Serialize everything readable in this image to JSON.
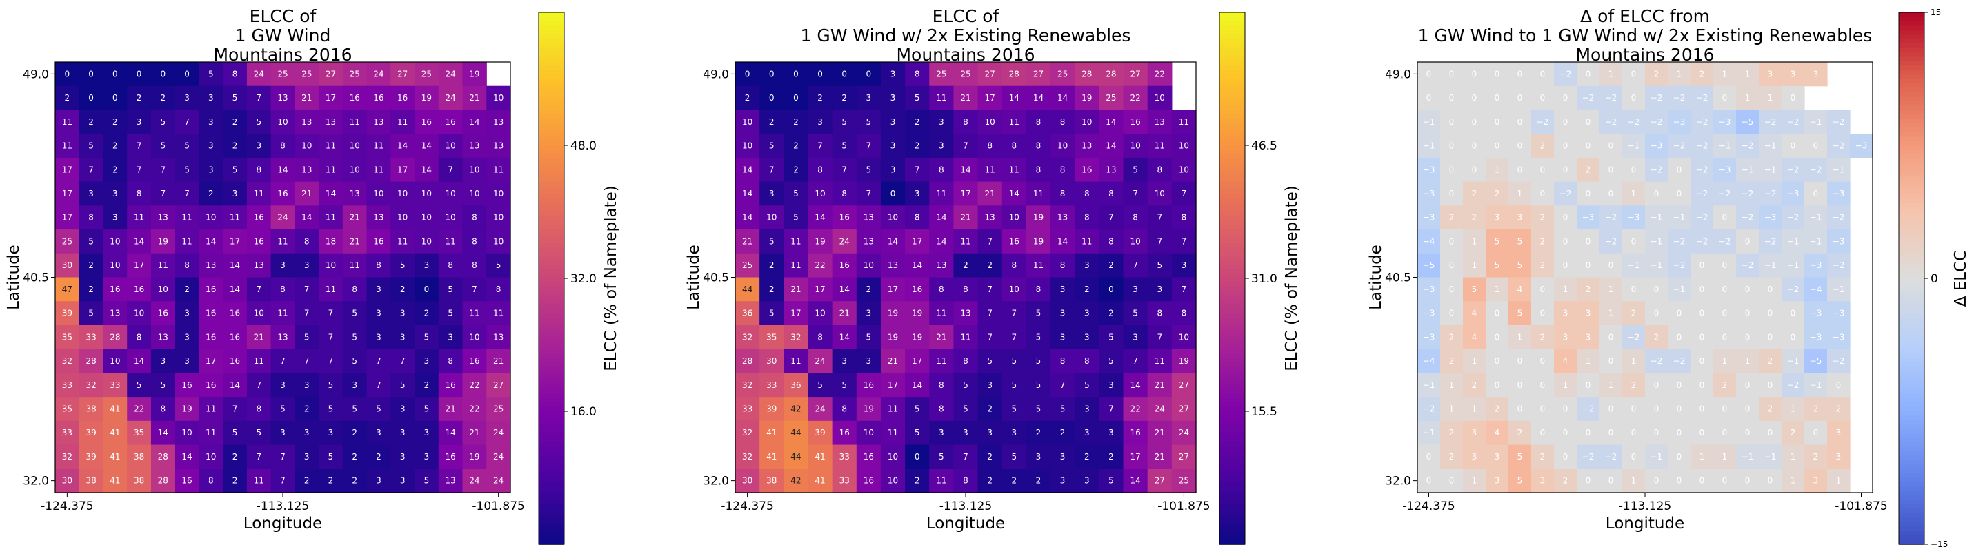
{
  "chart_data": [
    {
      "type": "heatmap",
      "title": [
        "ELCC of",
        "1 GW Wind",
        "Mountains 2016"
      ],
      "xlabel": "Longitude",
      "ylabel": "Latitude",
      "xticks": [
        "-124.375",
        "-113.125",
        "-101.875"
      ],
      "yticks": [
        "49.0",
        "40.5",
        "32.0"
      ],
      "colorbar_label": "ELCC (% of Nameplate)",
      "colorbar_ticks": [
        "16.0",
        "32.0",
        "48.0"
      ],
      "colorbar_tick_values": [
        16,
        32,
        48
      ],
      "colormap": "plasma",
      "vmin": 0,
      "vmax": 64,
      "values": [
        [
          0,
          0,
          0,
          0,
          0,
          0,
          5,
          8,
          24,
          25,
          25,
          27,
          25,
          24,
          27,
          25,
          24,
          19
        ],
        [
          2,
          0,
          0,
          2,
          2,
          3,
          3,
          5,
          7,
          13,
          21,
          17,
          16,
          16,
          16,
          19,
          24,
          21,
          10
        ],
        [
          11,
          2,
          2,
          3,
          5,
          7,
          3,
          2,
          5,
          10,
          13,
          13,
          11,
          13,
          11,
          16,
          16,
          14,
          13
        ],
        [
          11,
          5,
          2,
          7,
          5,
          5,
          3,
          2,
          3,
          8,
          10,
          11,
          10,
          11,
          14,
          14,
          10,
          13,
          13
        ],
        [
          17,
          7,
          2,
          7,
          7,
          5,
          3,
          5,
          8,
          14,
          13,
          11,
          10,
          11,
          17,
          14,
          7,
          10,
          11
        ],
        [
          17,
          3,
          3,
          8,
          7,
          7,
          2,
          3,
          11,
          16,
          21,
          14,
          13,
          10,
          10,
          10,
          10,
          10,
          10
        ],
        [
          17,
          8,
          3,
          11,
          13,
          11,
          10,
          11,
          16,
          24,
          14,
          11,
          21,
          13,
          10,
          10,
          10,
          8,
          10
        ],
        [
          25,
          5,
          10,
          14,
          19,
          11,
          14,
          17,
          16,
          11,
          8,
          18,
          21,
          16,
          11,
          10,
          11,
          8,
          10
        ],
        [
          30,
          2,
          10,
          17,
          11,
          8,
          13,
          14,
          13,
          3,
          3,
          10,
          11,
          8,
          5,
          3,
          8,
          8,
          5
        ],
        [
          47,
          2,
          16,
          16,
          10,
          2,
          16,
          14,
          7,
          8,
          7,
          11,
          8,
          3,
          2,
          0,
          5,
          7,
          8
        ],
        [
          39,
          5,
          13,
          10,
          16,
          3,
          16,
          16,
          10,
          11,
          7,
          7,
          5,
          3,
          3,
          2,
          5,
          11,
          11
        ],
        [
          35,
          33,
          28,
          8,
          13,
          3,
          16,
          16,
          21,
          13,
          5,
          7,
          5,
          3,
          3,
          5,
          3,
          10,
          13
        ],
        [
          32,
          28,
          10,
          14,
          3,
          3,
          17,
          16,
          11,
          7,
          7,
          7,
          5,
          7,
          7,
          3,
          8,
          16,
          21
        ],
        [
          33,
          32,
          33,
          5,
          5,
          16,
          16,
          14,
          7,
          3,
          3,
          5,
          3,
          7,
          5,
          2,
          16,
          22,
          27
        ],
        [
          35,
          38,
          41,
          22,
          8,
          19,
          11,
          7,
          8,
          5,
          2,
          5,
          5,
          5,
          3,
          5,
          21,
          22,
          25
        ],
        [
          33,
          39,
          41,
          35,
          14,
          10,
          11,
          5,
          5,
          3,
          3,
          3,
          2,
          3,
          3,
          3,
          14,
          21,
          24
        ],
        [
          32,
          39,
          41,
          38,
          28,
          14,
          10,
          2,
          7,
          7,
          3,
          5,
          2,
          2,
          3,
          3,
          16,
          19,
          24
        ],
        [
          30,
          38,
          41,
          38,
          28,
          16,
          8,
          2,
          11,
          7,
          2,
          2,
          2,
          3,
          3,
          5,
          13,
          24,
          24
        ]
      ]
    },
    {
      "type": "heatmap",
      "title": [
        "ELCC of",
        "1 GW Wind w/ 2x Existing Renewables",
        "Mountains 2016"
      ],
      "xlabel": "Longitude",
      "ylabel": "Latitude",
      "xticks": [
        "-124.375",
        "-113.125",
        "-101.875"
      ],
      "yticks": [
        "49.0",
        "40.5",
        "32.0"
      ],
      "colorbar_label": "ELCC (% of Nameplate)",
      "colorbar_ticks": [
        "15.5",
        "31.0",
        "46.5"
      ],
      "colorbar_tick_values": [
        15.5,
        31,
        46.5
      ],
      "colormap": "plasma",
      "vmin": 0,
      "vmax": 62,
      "values": [
        [
          0,
          0,
          0,
          0,
          0,
          0,
          3,
          8,
          25,
          25,
          27,
          28,
          27,
          25,
          28,
          28,
          27,
          22
        ],
        [
          2,
          0,
          0,
          2,
          2,
          3,
          3,
          5,
          11,
          21,
          17,
          14,
          14,
          14,
          19,
          25,
          22,
          10
        ],
        [
          10,
          2,
          2,
          3,
          5,
          5,
          3,
          2,
          3,
          8,
          10,
          11,
          8,
          8,
          10,
          14,
          16,
          13,
          11
        ],
        [
          10,
          5,
          2,
          7,
          5,
          7,
          3,
          2,
          3,
          7,
          8,
          8,
          8,
          10,
          13,
          14,
          10,
          11,
          10
        ],
        [
          14,
          7,
          2,
          8,
          7,
          5,
          3,
          7,
          8,
          14,
          11,
          11,
          8,
          8,
          16,
          13,
          5,
          8,
          10
        ],
        [
          14,
          3,
          5,
          10,
          8,
          7,
          0,
          3,
          11,
          17,
          21,
          14,
          11,
          8,
          8,
          8,
          7,
          10,
          7
        ],
        [
          14,
          10,
          5,
          14,
          16,
          13,
          10,
          8,
          14,
          21,
          13,
          10,
          19,
          13,
          8,
          7,
          8,
          7,
          8
        ],
        [
          21,
          5,
          11,
          19,
          24,
          13,
          14,
          17,
          14,
          11,
          7,
          16,
          19,
          14,
          11,
          8,
          10,
          7,
          7
        ],
        [
          25,
          2,
          11,
          22,
          16,
          10,
          13,
          14,
          13,
          2,
          2,
          8,
          11,
          8,
          3,
          2,
          7,
          5,
          3
        ],
        [
          44,
          2,
          21,
          17,
          14,
          2,
          17,
          16,
          8,
          8,
          7,
          10,
          8,
          3,
          2,
          0,
          3,
          3,
          7
        ],
        [
          36,
          5,
          17,
          10,
          21,
          3,
          19,
          19,
          11,
          13,
          7,
          7,
          5,
          3,
          3,
          2,
          5,
          8,
          8
        ],
        [
          32,
          35,
          32,
          8,
          14,
          5,
          19,
          19,
          21,
          11,
          7,
          7,
          5,
          3,
          3,
          5,
          3,
          7,
          10
        ],
        [
          28,
          30,
          11,
          24,
          3,
          3,
          21,
          17,
          11,
          8,
          5,
          5,
          5,
          8,
          8,
          5,
          7,
          11,
          19
        ],
        [
          32,
          33,
          36,
          5,
          5,
          16,
          17,
          14,
          8,
          5,
          3,
          5,
          5,
          7,
          5,
          3,
          14,
          21,
          27
        ],
        [
          33,
          39,
          42,
          24,
          8,
          19,
          11,
          5,
          8,
          5,
          2,
          5,
          5,
          5,
          3,
          7,
          22,
          24,
          27
        ],
        [
          32,
          41,
          44,
          39,
          16,
          10,
          11,
          5,
          3,
          3,
          3,
          3,
          2,
          2,
          3,
          3,
          16,
          21,
          24
        ],
        [
          32,
          41,
          44,
          41,
          33,
          16,
          10,
          0,
          5,
          7,
          2,
          5,
          3,
          3,
          2,
          2,
          17,
          21,
          27
        ],
        [
          30,
          38,
          42,
          41,
          33,
          16,
          10,
          2,
          11,
          8,
          2,
          2,
          2,
          3,
          3,
          5,
          14,
          27,
          25
        ]
      ]
    },
    {
      "type": "heatmap",
      "title": [
        "Δ of ELCC from",
        "1 GW Wind to 1 GW Wind w/ 2x Existing Renewables",
        "Mountains 2016"
      ],
      "xlabel": "Longitude",
      "ylabel": "Latitude",
      "xticks": [
        "-124.375",
        "-113.125",
        "-101.875"
      ],
      "yticks": [
        "49.0",
        "40.5",
        "32.0"
      ],
      "colorbar_label": "Δ ELCC",
      "colorbar_ticks": [
        "15",
        "0",
        "−15"
      ],
      "colorbar_tick_values": [
        15,
        0,
        -15
      ],
      "colormap": "coolwarm",
      "vmin": -15,
      "vmax": 15,
      "values": [
        [
          0,
          0,
          0,
          0,
          0,
          0,
          -2,
          0,
          1,
          0,
          2,
          1,
          2,
          1,
          1,
          3,
          3,
          3
        ],
        [
          0,
          0,
          0,
          0,
          0,
          0,
          0,
          -2,
          -2,
          0,
          -2,
          -2,
          -2,
          0,
          1,
          1,
          0
        ],
        [
          -1,
          0,
          0,
          0,
          0,
          -2,
          0,
          0,
          -2,
          -2,
          -2,
          -3,
          -2,
          -3,
          -5,
          -2,
          -2,
          -1,
          -2
        ],
        [
          -1,
          0,
          0,
          0,
          0,
          2,
          0,
          0,
          0,
          -1,
          -3,
          -2,
          -2,
          -1,
          -2,
          -1,
          0,
          0,
          -2,
          -3
        ],
        [
          -3,
          0,
          0,
          1,
          0,
          0,
          0,
          2,
          0,
          0,
          -2,
          0,
          -2,
          -3,
          -1,
          -1,
          -2,
          -2,
          -1
        ],
        [
          -3,
          0,
          2,
          2,
          1,
          0,
          -2,
          0,
          0,
          1,
          0,
          0,
          -2,
          -2,
          -2,
          -2,
          -3,
          0,
          -3
        ],
        [
          -3,
          2,
          2,
          3,
          3,
          2,
          0,
          -3,
          -2,
          -3,
          -1,
          -1,
          -2,
          0,
          -2,
          -3,
          -2,
          -1,
          -2
        ],
        [
          -4,
          0,
          1,
          5,
          5,
          2,
          0,
          0,
          -2,
          0,
          -1,
          -2,
          -2,
          -2,
          0,
          -2,
          -1,
          -1,
          -3
        ],
        [
          -5,
          0,
          1,
          5,
          5,
          2,
          0,
          0,
          0,
          -1,
          -1,
          -2,
          0,
          0,
          -2,
          -1,
          -1,
          -3,
          -2
        ],
        [
          -3,
          0,
          5,
          1,
          4,
          0,
          1,
          2,
          1,
          0,
          0,
          -1,
          0,
          0,
          0,
          0,
          -2,
          -4,
          -1
        ],
        [
          -3,
          0,
          4,
          0,
          5,
          0,
          3,
          3,
          1,
          2,
          0,
          0,
          0,
          0,
          0,
          0,
          0,
          -3,
          -3
        ],
        [
          -3,
          2,
          4,
          0,
          1,
          2,
          3,
          3,
          0,
          -2,
          2,
          0,
          0,
          0,
          0,
          0,
          0,
          -3,
          -3
        ],
        [
          -4,
          2,
          1,
          0,
          0,
          0,
          4,
          1,
          0,
          1,
          -2,
          -2,
          0,
          1,
          1,
          2,
          -1,
          -5,
          -2
        ],
        [
          -1,
          1,
          2,
          0,
          0,
          0,
          1,
          0,
          1,
          2,
          0,
          0,
          0,
          2,
          0,
          0,
          -2,
          -1,
          0
        ],
        [
          -2,
          1,
          1,
          2,
          0,
          0,
          0,
          -2,
          0,
          0,
          0,
          0,
          0,
          0,
          0,
          2,
          1,
          2,
          2
        ],
        [
          -1,
          2,
          3,
          4,
          2,
          0,
          0,
          0,
          0,
          0,
          0,
          0,
          0,
          0,
          0,
          0,
          2,
          0,
          3
        ],
        [
          0,
          2,
          3,
          3,
          5,
          2,
          0,
          -2,
          -2,
          0,
          -1,
          0,
          1,
          1,
          -1,
          -1,
          1,
          2,
          3
        ],
        [
          0,
          0,
          1,
          3,
          5,
          3,
          2,
          0,
          0,
          1,
          0,
          0,
          0,
          0,
          0,
          0,
          1,
          3,
          1
        ]
      ]
    }
  ]
}
